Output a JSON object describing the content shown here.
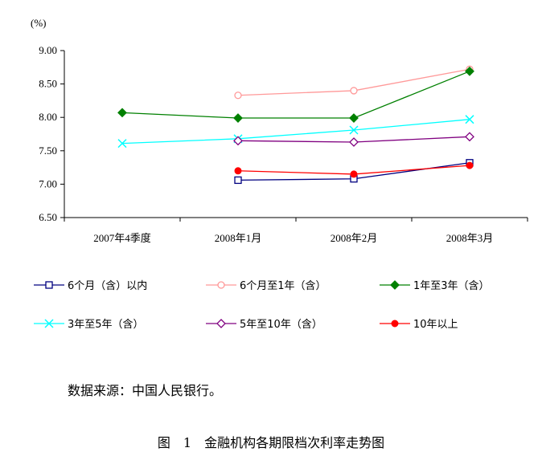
{
  "chart_data": {
    "type": "line",
    "unit_label": "(%)",
    "categories": [
      "2007年4季度",
      "2008年1月",
      "2008年2月",
      "2008年3月"
    ],
    "ylim": [
      6.5,
      9.0
    ],
    "yticks": [
      "9.00",
      "8.50",
      "8.00",
      "7.50",
      "7.00",
      "6.50"
    ],
    "grid": false,
    "legend_position": "bottom",
    "series": [
      {
        "name": "6个月（含）以内",
        "values": [
          null,
          7.06,
          7.08,
          7.32
        ],
        "color": "#000080",
        "marker": "square-open"
      },
      {
        "name": "6个月至1年（含）",
        "values": [
          null,
          8.33,
          8.4,
          8.72
        ],
        "color": "#ff9999",
        "marker": "circle-open"
      },
      {
        "name": "1年至3年（含）",
        "values": [
          8.07,
          7.99,
          7.99,
          8.69
        ],
        "color": "#008000",
        "marker": "diamond-filled"
      },
      {
        "name": "3年至5年（含）",
        "values": [
          7.61,
          7.68,
          7.81,
          7.97
        ],
        "color": "#00ffff",
        "marker": "x"
      },
      {
        "name": "5年至10年（含）",
        "values": [
          null,
          7.65,
          7.63,
          7.71
        ],
        "color": "#800080",
        "marker": "diamond-open"
      },
      {
        "name": "10年以上",
        "values": [
          null,
          7.2,
          7.15,
          7.28
        ],
        "color": "#ff0000",
        "marker": "circle-filled"
      }
    ]
  },
  "source_text": "数据来源：中国人民银行。",
  "caption": "图　1　金融机构各期限档次利率走势图"
}
